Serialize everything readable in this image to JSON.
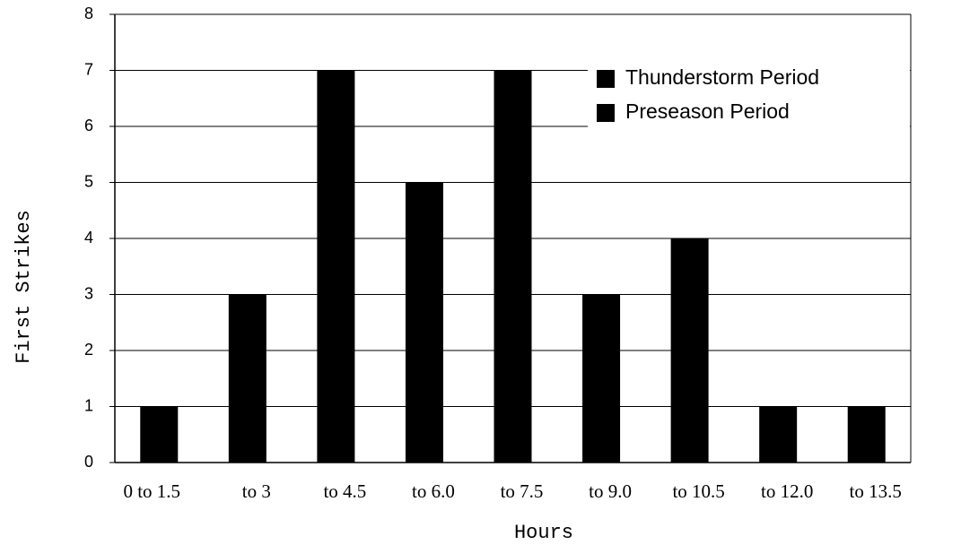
{
  "chart_data": {
    "type": "bar",
    "x_label": "Hours",
    "y_label": "First Strikes",
    "categories": [
      "0 to 1.5",
      "to 3",
      "to 4.5",
      "to 6.0",
      "to 7.5",
      "to 9.0",
      "to 10.5",
      "to 12.0",
      "to 13.5"
    ],
    "series": [
      {
        "name": "Thunderstorm Period",
        "color": "#000000",
        "values": [
          1,
          3,
          7,
          5,
          7,
          3,
          4,
          1,
          1
        ]
      },
      {
        "name": "Preseason Period",
        "color": "#000000",
        "values": [
          0,
          0,
          0,
          0,
          0,
          0,
          0,
          0,
          0
        ]
      }
    ],
    "ylim": [
      0,
      8
    ],
    "yticks": [
      0,
      1,
      2,
      3,
      4,
      5,
      6,
      7,
      8
    ],
    "grid": true,
    "legend": "upper right"
  }
}
